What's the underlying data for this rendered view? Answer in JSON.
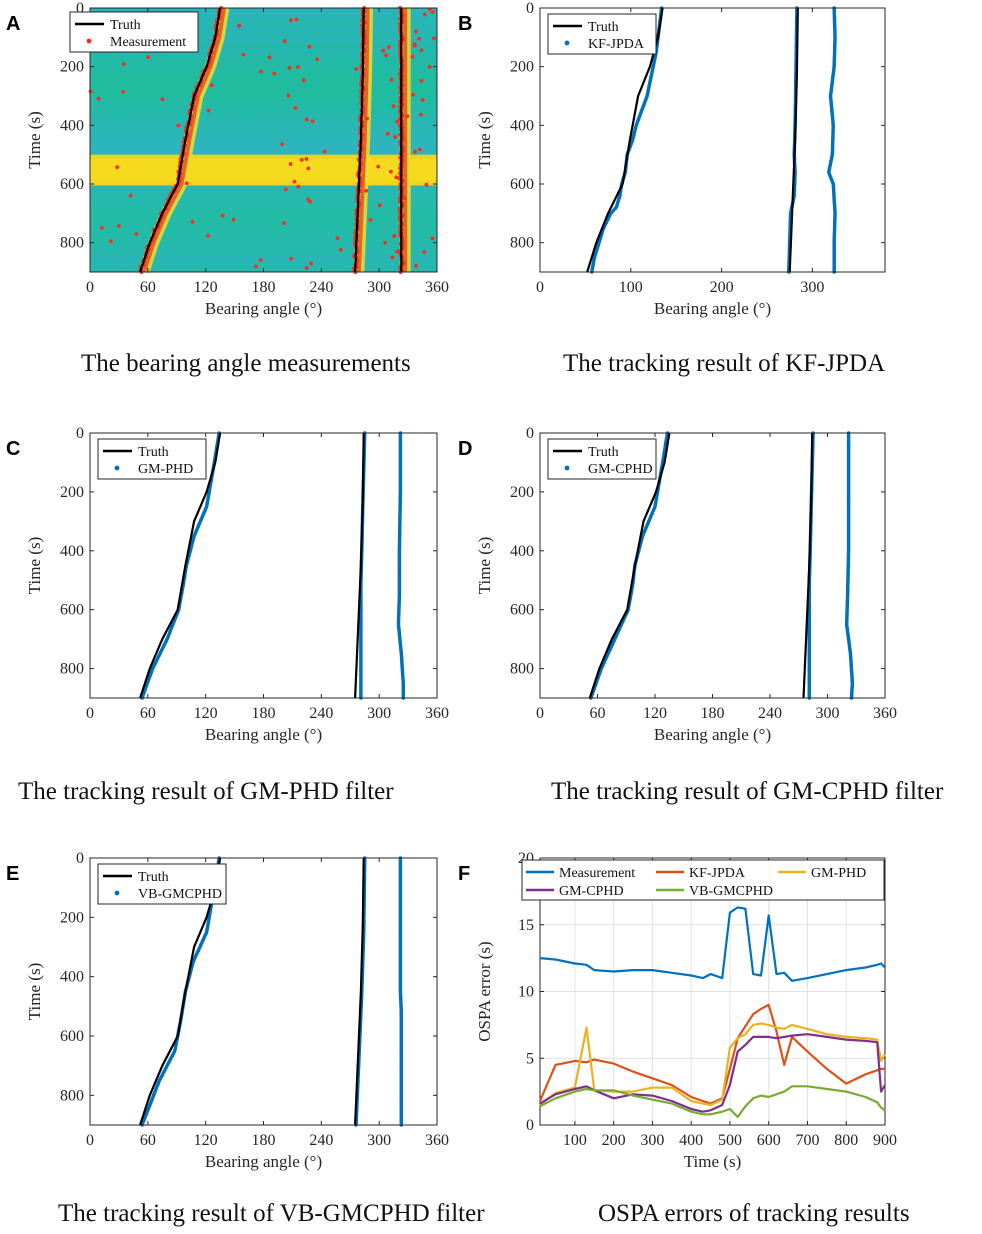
{
  "chart_data": [
    {
      "panel": "A",
      "type": "heatmap",
      "caption": "The bearing angle measurements",
      "xlabel": "Bearing angle (°)",
      "ylabel": "Time (s)",
      "xlim": [
        0,
        360
      ],
      "ylim": [
        0,
        900
      ],
      "y_reversed": true,
      "xticks": [
        "0",
        "60",
        "120",
        "180",
        "240",
        "300",
        "360"
      ],
      "yticks": [
        "0",
        "200",
        "400",
        "600",
        "800"
      ],
      "legend": [
        {
          "name": "Truth",
          "color": "#000000",
          "style": "line"
        },
        {
          "name": "Measurement",
          "color": "#ff2a1a",
          "style": "dots"
        }
      ],
      "truth_tracks": [
        [
          [
            135,
            0
          ],
          [
            130,
            100
          ],
          [
            121,
            200
          ],
          [
            108,
            300
          ],
          [
            99,
            450
          ],
          [
            91,
            600
          ],
          [
            75,
            700
          ],
          [
            62,
            800
          ],
          [
            52,
            900
          ]
        ],
        [
          [
            284,
            0
          ],
          [
            283,
            225
          ],
          [
            281,
            450
          ],
          [
            278,
            675
          ],
          [
            275,
            900
          ]
        ],
        [
          [
            323,
            0
          ],
          [
            323,
            450
          ],
          [
            323,
            900
          ]
        ]
      ],
      "bright_band": [
        500,
        605
      ]
    },
    {
      "panel": "B",
      "type": "scatter",
      "caption": "The tracking result of KF-JPDA",
      "xlabel": "Bearing angle (°)",
      "ylabel": "Time (s)",
      "xlim": [
        0,
        380
      ],
      "ylim": [
        0,
        900
      ],
      "y_reversed": true,
      "xticks": [
        "0",
        "100",
        "200",
        "300"
      ],
      "yticks": [
        "0",
        "200",
        "400",
        "600",
        "800"
      ],
      "legend": [
        {
          "name": "Truth",
          "color": "#000000",
          "style": "line"
        },
        {
          "name": "KF-JPDA",
          "color": "#0072bd",
          "style": "dots"
        }
      ],
      "truth_tracks": [
        [
          [
            135,
            0
          ],
          [
            130,
            100
          ],
          [
            121,
            200
          ],
          [
            108,
            300
          ],
          [
            99,
            450
          ],
          [
            91,
            600
          ],
          [
            75,
            700
          ],
          [
            62,
            800
          ],
          [
            52,
            900
          ]
        ],
        [
          [
            284,
            0
          ],
          [
            283,
            225
          ],
          [
            281,
            450
          ],
          [
            278,
            675
          ],
          [
            275,
            900
          ]
        ]
      ],
      "estimate_tracks": [
        [
          [
            134,
            0
          ],
          [
            128,
            150
          ],
          [
            118,
            300
          ],
          [
            106,
            400
          ],
          [
            102,
            450
          ],
          [
            96,
            500
          ],
          [
            94,
            560
          ],
          [
            90,
            600
          ],
          [
            88,
            640
          ],
          [
            84,
            680
          ],
          [
            78,
            700
          ],
          [
            70,
            750
          ],
          [
            65,
            800
          ],
          [
            60,
            850
          ],
          [
            57,
            900
          ]
        ],
        [
          [
            283,
            0
          ],
          [
            282,
            200
          ],
          [
            281,
            400
          ],
          [
            280,
            500
          ],
          [
            281,
            560
          ],
          [
            280,
            640
          ],
          [
            276,
            700
          ],
          [
            275,
            800
          ],
          [
            274,
            900
          ]
        ],
        [
          [
            324,
            0
          ],
          [
            325,
            100
          ],
          [
            324,
            200
          ],
          [
            320,
            300
          ],
          [
            323,
            400
          ],
          [
            322,
            500
          ],
          [
            318,
            560
          ],
          [
            323,
            600
          ],
          [
            325,
            700
          ],
          [
            324,
            800
          ],
          [
            324,
            900
          ]
        ]
      ]
    },
    {
      "panel": "C",
      "type": "scatter",
      "caption": "The tracking result of GM-PHD filter",
      "xlabel": "Bearing angle (°)",
      "ylabel": "Time (s)",
      "xlim": [
        0,
        360
      ],
      "ylim": [
        0,
        900
      ],
      "y_reversed": true,
      "xticks": [
        "0",
        "60",
        "120",
        "180",
        "240",
        "300",
        "360"
      ],
      "yticks": [
        "0",
        "200",
        "400",
        "600",
        "800"
      ],
      "legend": [
        {
          "name": "Truth",
          "color": "#000000",
          "style": "line"
        },
        {
          "name": "GM-PHD",
          "color": "#0072bd",
          "style": "dots"
        }
      ],
      "truth_tracks": [
        [
          [
            135,
            0
          ],
          [
            130,
            100
          ],
          [
            121,
            200
          ],
          [
            108,
            300
          ],
          [
            99,
            450
          ],
          [
            91,
            600
          ],
          [
            75,
            700
          ],
          [
            62,
            800
          ],
          [
            52,
            900
          ]
        ],
        [
          [
            284,
            0
          ],
          [
            283,
            225
          ],
          [
            281,
            450
          ],
          [
            278,
            675
          ],
          [
            275,
            900
          ]
        ]
      ],
      "estimate_tracks": [
        [
          [
            134,
            0
          ],
          [
            129,
            100
          ],
          [
            121,
            250
          ],
          [
            108,
            350
          ],
          [
            100,
            450
          ],
          [
            97,
            510
          ],
          [
            92,
            600
          ],
          [
            80,
            700
          ],
          [
            65,
            800
          ],
          [
            54,
            900
          ]
        ],
        [
          [
            285,
            0
          ],
          [
            283,
            250
          ],
          [
            282,
            400
          ],
          [
            281,
            510
          ]
        ],
        [
          [
            322,
            0
          ],
          [
            322,
            200
          ],
          [
            321,
            400
          ],
          [
            321,
            550
          ],
          [
            320,
            650
          ],
          [
            323,
            750
          ],
          [
            325,
            850
          ],
          [
            325,
            900
          ]
        ]
      ]
    },
    {
      "panel": "D",
      "type": "scatter",
      "caption": "The tracking result of GM-CPHD filter",
      "xlabel": "Bearing angle (°)",
      "ylabel": "Time (s)",
      "xlim": [
        0,
        360
      ],
      "ylim": [
        0,
        900
      ],
      "y_reversed": true,
      "xticks": [
        "0",
        "60",
        "120",
        "180",
        "240",
        "300",
        "360"
      ],
      "yticks": [
        "0",
        "200",
        "400",
        "600",
        "800"
      ],
      "legend": [
        {
          "name": "Truth",
          "color": "#000000",
          "style": "line"
        },
        {
          "name": "GM-CPHD",
          "color": "#0072bd",
          "style": "dots"
        }
      ],
      "truth_tracks": [
        [
          [
            135,
            0
          ],
          [
            130,
            100
          ],
          [
            121,
            200
          ],
          [
            108,
            300
          ],
          [
            99,
            450
          ],
          [
            91,
            600
          ],
          [
            75,
            700
          ],
          [
            62,
            800
          ],
          [
            52,
            900
          ]
        ],
        [
          [
            284,
            0
          ],
          [
            283,
            225
          ],
          [
            281,
            450
          ],
          [
            278,
            675
          ],
          [
            275,
            900
          ]
        ]
      ],
      "estimate_tracks": [
        [
          [
            133,
            0
          ],
          [
            128,
            100
          ],
          [
            120,
            250
          ],
          [
            107,
            350
          ],
          [
            99,
            450
          ],
          [
            97,
            510
          ],
          [
            92,
            600
          ],
          [
            78,
            700
          ],
          [
            64,
            800
          ],
          [
            53,
            900
          ]
        ],
        [
          [
            285,
            0
          ],
          [
            283,
            250
          ],
          [
            282,
            400
          ],
          [
            281,
            510
          ]
        ],
        [
          [
            322,
            0
          ],
          [
            322,
            200
          ],
          [
            322,
            400
          ],
          [
            321,
            550
          ],
          [
            320,
            650
          ],
          [
            324,
            750
          ],
          [
            326,
            850
          ],
          [
            325,
            900
          ]
        ]
      ]
    },
    {
      "panel": "E",
      "type": "scatter",
      "caption": "The tracking result of VB-GMCPHD filter",
      "xlabel": "Bearing angle (°)",
      "ylabel": "Time (s)",
      "xlim": [
        0,
        360
      ],
      "ylim": [
        0,
        900
      ],
      "y_reversed": true,
      "xticks": [
        "0",
        "60",
        "120",
        "180",
        "240",
        "300",
        "360"
      ],
      "yticks": [
        "0",
        "200",
        "400",
        "600",
        "800"
      ],
      "legend": [
        {
          "name": "Truth",
          "color": "#000000",
          "style": "line"
        },
        {
          "name": "VB-GMCPHD",
          "color": "#0072bd",
          "style": "dots"
        }
      ],
      "truth_tracks": [
        [
          [
            135,
            0
          ],
          [
            130,
            100
          ],
          [
            121,
            200
          ],
          [
            108,
            300
          ],
          [
            99,
            450
          ],
          [
            91,
            600
          ],
          [
            75,
            700
          ],
          [
            62,
            800
          ],
          [
            52,
            900
          ]
        ],
        [
          [
            284,
            0
          ],
          [
            283,
            225
          ],
          [
            281,
            450
          ],
          [
            278,
            675
          ],
          [
            275,
            900
          ]
        ]
      ],
      "estimate_tracks": [
        [
          [
            134,
            0
          ],
          [
            129,
            100
          ],
          [
            121,
            250
          ],
          [
            107,
            350
          ],
          [
            99,
            450
          ],
          [
            94,
            550
          ],
          [
            88,
            650
          ],
          [
            72,
            750
          ],
          [
            60,
            850
          ],
          [
            54,
            900
          ]
        ],
        [
          [
            285,
            0
          ],
          [
            284,
            250
          ],
          [
            282,
            450
          ],
          [
            280,
            600
          ],
          [
            278,
            750
          ],
          [
            276,
            900
          ]
        ],
        [
          [
            322,
            0
          ],
          [
            322,
            250
          ],
          [
            322,
            450
          ],
          [
            323,
            520
          ],
          [
            323,
            700
          ],
          [
            323,
            900
          ]
        ]
      ]
    },
    {
      "panel": "F",
      "type": "line",
      "caption": "OSPA errors of tracking results",
      "xlabel": "Time (s)",
      "ylabel": "OSPA error (s)",
      "xlim": [
        10,
        900
      ],
      "ylim": [
        0,
        20
      ],
      "grid": true,
      "xticks": [
        "100",
        "200",
        "300",
        "400",
        "500",
        "600",
        "700",
        "800",
        "900"
      ],
      "yticks": [
        "0",
        "5",
        "10",
        "15",
        "20"
      ],
      "x": [
        10,
        50,
        100,
        130,
        150,
        200,
        250,
        300,
        350,
        400,
        430,
        450,
        480,
        500,
        520,
        540,
        560,
        580,
        600,
        620,
        640,
        660,
        700,
        750,
        800,
        850,
        880,
        890,
        900
      ],
      "series": [
        {
          "name": "Measurement",
          "color": "#0072bd",
          "values": [
            12.5,
            12.4,
            12.1,
            12.0,
            11.6,
            11.5,
            11.6,
            11.6,
            11.4,
            11.2,
            11.0,
            11.3,
            11.0,
            15.9,
            16.3,
            16.2,
            11.3,
            11.2,
            15.7,
            11.3,
            11.4,
            10.8,
            11.0,
            11.3,
            11.6,
            11.8,
            12.0,
            12.1,
            11.8
          ]
        },
        {
          "name": "KF-JPDA",
          "color": "#d95319",
          "values": [
            1.8,
            4.5,
            4.8,
            4.7,
            4.9,
            4.6,
            4.0,
            3.5,
            3.0,
            2.1,
            1.8,
            1.6,
            2.0,
            4.2,
            6.5,
            7.4,
            8.3,
            8.7,
            9.0,
            7.0,
            4.5,
            6.6,
            5.5,
            4.2,
            3.1,
            3.8,
            4.1,
            4.2,
            4.2
          ]
        },
        {
          "name": "GM-PHD",
          "color": "#edb120",
          "values": [
            1.5,
            2.4,
            2.8,
            7.3,
            2.6,
            2.5,
            2.5,
            2.8,
            2.8,
            1.8,
            1.6,
            1.5,
            1.9,
            5.8,
            6.5,
            6.8,
            7.5,
            7.6,
            7.5,
            7.3,
            7.2,
            7.5,
            7.2,
            6.8,
            6.6,
            6.5,
            6.4,
            4.8,
            5.3
          ]
        },
        {
          "name": "GM-CPHD",
          "color": "#7e2f8e",
          "values": [
            1.6,
            2.3,
            2.7,
            2.9,
            2.6,
            2.0,
            2.3,
            2.2,
            1.8,
            1.2,
            1.0,
            1.1,
            1.5,
            3.0,
            5.5,
            6.0,
            6.6,
            6.6,
            6.6,
            6.5,
            6.6,
            6.7,
            6.8,
            6.6,
            6.4,
            6.3,
            6.2,
            2.5,
            3.0
          ]
        },
        {
          "name": "VB-GMCPHD",
          "color": "#77ac30",
          "values": [
            1.4,
            2.0,
            2.5,
            2.7,
            2.6,
            2.6,
            2.2,
            1.9,
            1.6,
            1.0,
            0.8,
            0.8,
            1.0,
            1.2,
            0.6,
            1.4,
            2.0,
            2.2,
            2.1,
            2.3,
            2.5,
            2.9,
            2.9,
            2.7,
            2.5,
            2.1,
            1.7,
            1.3,
            1.1
          ]
        }
      ]
    }
  ]
}
